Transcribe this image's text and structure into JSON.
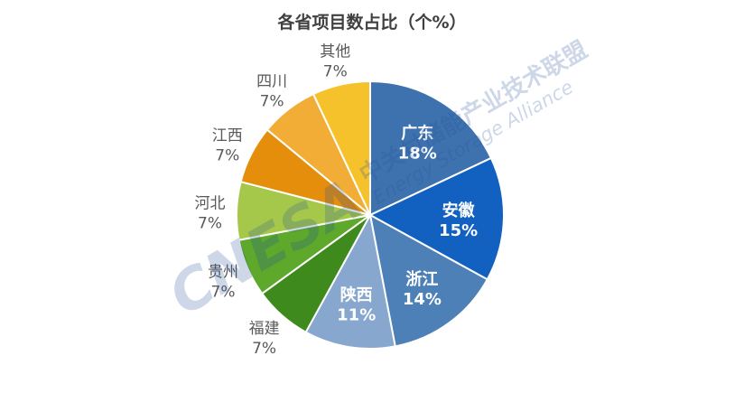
{
  "chart_data": {
    "type": "pie",
    "title": "各省项目数占比（个%）",
    "start_angle_deg": 0,
    "direction": "clockwise",
    "slices": [
      {
        "name": "广东",
        "value": 18,
        "label": "18%",
        "color": "#3e72ae",
        "label_pos": "inside"
      },
      {
        "name": "安徽",
        "value": 15,
        "label": "15%",
        "color": "#1260c0",
        "label_pos": "inside"
      },
      {
        "name": "浙江",
        "value": 14,
        "label": "14%",
        "color": "#4d80b6",
        "label_pos": "inside"
      },
      {
        "name": "陕西",
        "value": 11,
        "label": "11%",
        "color": "#87a7cf",
        "label_pos": "inside"
      },
      {
        "name": "福建",
        "value": 7,
        "label": "7%",
        "color": "#3f8a1c",
        "label_pos": "outside"
      },
      {
        "name": "贵州",
        "value": 7,
        "label": "7%",
        "color": "#5ea82c",
        "label_pos": "outside"
      },
      {
        "name": "河北",
        "value": 7,
        "label": "7%",
        "color": "#a5c84a",
        "label_pos": "outside"
      },
      {
        "name": "江西",
        "value": 7,
        "label": "7%",
        "color": "#e58e0c",
        "label_pos": "outside"
      },
      {
        "name": "四川",
        "value": 7,
        "label": "7%",
        "color": "#f2ad36",
        "label_pos": "outside"
      },
      {
        "name": "其他",
        "value": 7,
        "label": "7%",
        "color": "#f5c22b",
        "label_pos": "outside"
      }
    ]
  },
  "watermark": {
    "logo": "CNESA",
    "cn": "中关村储能产业技术联盟",
    "en": "Energy Storage Alliance"
  }
}
